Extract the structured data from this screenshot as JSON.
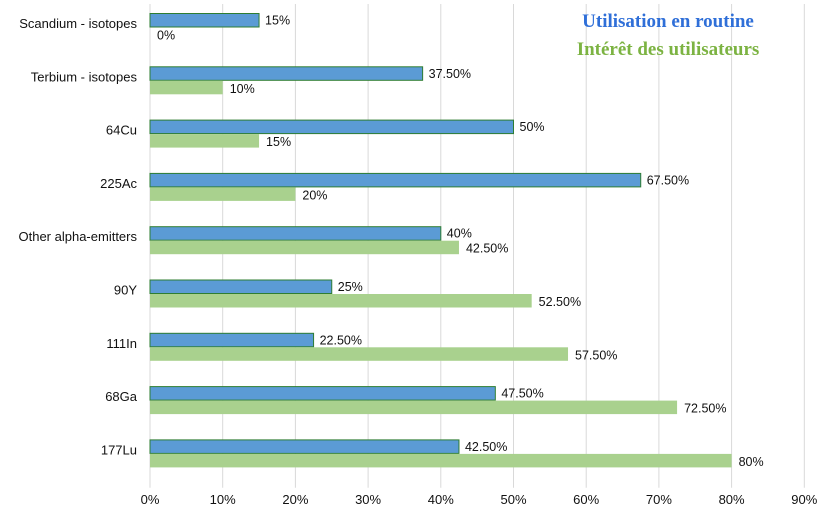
{
  "colors": {
    "series1": "#5b9bd5",
    "series1_stroke": "#2e7d32",
    "series2": "#a9d18e",
    "gridline": "#d9d9d9",
    "legend1": "#2f6fd8",
    "legend2": "#7cb342"
  },
  "chart_data": {
    "type": "bar",
    "orientation": "horizontal",
    "categories": [
      "Scandium - isotopes",
      "Terbium - isotopes",
      "64Cu",
      "225Ac",
      "Other alpha-emitters",
      "90Y",
      "111In",
      "68Ga",
      "177Lu"
    ],
    "series": [
      {
        "name": "Utilisation en routine",
        "values": [
          15,
          37.5,
          50,
          67.5,
          40,
          25,
          22.5,
          47.5,
          42.5
        ],
        "labels": [
          "15%",
          "37.50%",
          "50%",
          "67.50%",
          "40%",
          "25%",
          "22.50%",
          "47.50%",
          "42.50%"
        ]
      },
      {
        "name": "Intérêt des utilisateurs",
        "values": [
          0,
          10,
          15,
          20,
          42.5,
          52.5,
          57.5,
          72.5,
          80
        ],
        "labels": [
          "0%",
          "10%",
          "15%",
          "20%",
          "42.50%",
          "52.50%",
          "57.50%",
          "72.50%",
          "80%"
        ]
      }
    ],
    "xlim": [
      0,
      90
    ],
    "xticks": [
      "0%",
      "10%",
      "20%",
      "30%",
      "40%",
      "50%",
      "60%",
      "70%",
      "80%",
      "90%"
    ],
    "grid": true,
    "legend_position": "top-right"
  }
}
